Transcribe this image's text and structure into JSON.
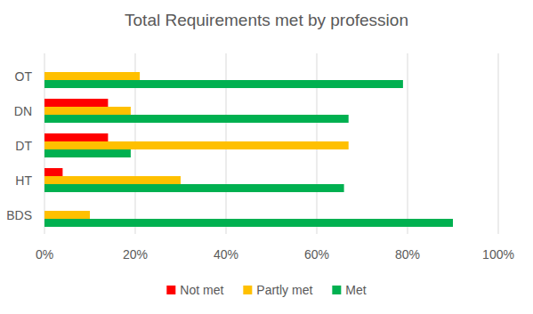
{
  "chart_data": {
    "type": "bar",
    "title": "Total Requirements met by profession",
    "orientation": "horizontal",
    "categories": [
      "OT",
      "DN",
      "DT",
      "HT",
      "BDS"
    ],
    "series": [
      {
        "name": "Not met",
        "color": "#ff0000",
        "values": [
          0,
          14,
          14,
          4,
          0
        ]
      },
      {
        "name": "Partly met",
        "color": "#ffc000",
        "values": [
          21,
          19,
          67,
          30,
          10
        ]
      },
      {
        "name": "Met",
        "color": "#00b050",
        "values": [
          79,
          67,
          19,
          66,
          90
        ]
      }
    ],
    "xlim": [
      0,
      100
    ],
    "xticks": [
      {
        "value": 0,
        "label": "0%"
      },
      {
        "value": 20,
        "label": "20%"
      },
      {
        "value": 40,
        "label": "40%"
      },
      {
        "value": 60,
        "label": "60%"
      },
      {
        "value": 80,
        "label": "80%"
      },
      {
        "value": 100,
        "label": "100%"
      }
    ],
    "grid": true,
    "legend": "bottom"
  }
}
